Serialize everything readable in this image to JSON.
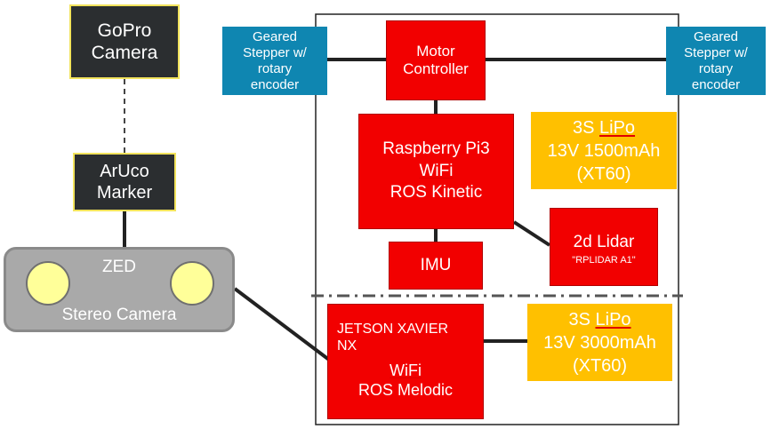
{
  "diagram": {
    "gopro": {
      "line1": "GoPro",
      "line2": "Camera"
    },
    "aruco": {
      "line1": "ArUco",
      "line2": "Marker"
    },
    "zed": {
      "title": "ZED",
      "subtitle": "Stereo Camera"
    },
    "stepper_left": {
      "line1": "Geared",
      "line2": "Stepper w/",
      "line3": "rotary",
      "line4": "encoder"
    },
    "stepper_right": {
      "line1": "Geared",
      "line2": "Stepper w/",
      "line3": "rotary",
      "line4": "encoder"
    },
    "motor_controller": {
      "line1": "Motor",
      "line2": "Controller"
    },
    "raspberry": {
      "line1": "Raspberry Pi3",
      "line2": "WiFi",
      "line3": "ROS Kinetic"
    },
    "lipo_top": {
      "line1_prefix": "3S ",
      "line1_word": "LiPo",
      "line2": "13V 1500mAh",
      "line3": "(XT60)"
    },
    "lidar": {
      "line1": "2d Lidar",
      "line2": "\"RPLIDAR A1\""
    },
    "imu": {
      "label": "IMU"
    },
    "jetson": {
      "line1": "JETSON XAVIER",
      "line2": "NX",
      "line3": "WiFi",
      "line4": "ROS Melodic"
    },
    "lipo_bottom": {
      "line1_prefix": "3S ",
      "line1_word": "LiPo",
      "line2": "13V 3000mAh",
      "line3": "(XT60)"
    }
  },
  "colors": {
    "dark_box": "#2b2e30",
    "outline_yellow": "#f2e35c",
    "stepper_blue": "#0f86b1",
    "component_red": "#f20000",
    "battery_yellow": "#ffc000",
    "camera_gray": "#a9a9a9",
    "lens_yellow": "#ffff99",
    "wire": "#222222"
  }
}
